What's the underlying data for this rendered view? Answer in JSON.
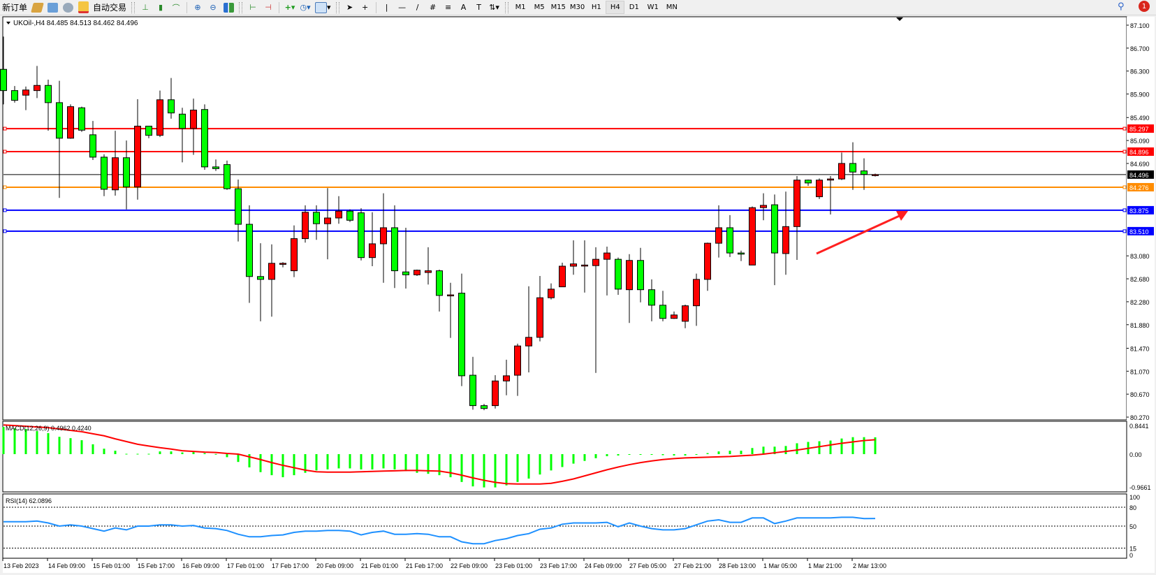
{
  "toolbar": {
    "new_order": "新订单",
    "auto_trading": "自动交易",
    "timeframes": [
      "M1",
      "M5",
      "M15",
      "M30",
      "H1",
      "H4",
      "D1",
      "W1",
      "MN"
    ],
    "active_timeframe": "H4",
    "notification_count": "1",
    "icons": [
      "metaeditor-icon",
      "market-watch-icon",
      "signals-icon",
      "auto-trading-icon",
      "bar-chart-icon",
      "candlestick-icon",
      "line-chart-icon",
      "zoom-in-icon",
      "zoom-out-icon",
      "tile-windows-icon",
      "auto-scroll-icon",
      "chart-shift-icon",
      "indicators-icon",
      "periods-icon",
      "templates-icon",
      "cursor-icon",
      "crosshair-icon",
      "vertical-line-icon",
      "horizontal-line-icon",
      "trendline-icon",
      "equidistant-channel-icon",
      "fibonacci-icon",
      "text-icon",
      "text-label-icon",
      "arrows-icon",
      "search-icon",
      "chat-icon"
    ]
  },
  "chart": {
    "title": "UKOil-,H4  84.485 84.513 84.462 84.496",
    "bull_color": "#ff0000",
    "bear_color": "#00ff00",
    "price_labels": [
      "87.100",
      "86.700",
      "86.300",
      "85.900",
      "85.490",
      "85.090",
      "84.690",
      "83.080",
      "82.680",
      "82.280",
      "81.880",
      "81.470",
      "81.070",
      "80.670",
      "80.270"
    ],
    "levels": [
      {
        "price": "85.297",
        "color": "#ff0000"
      },
      {
        "price": "84.896",
        "color": "#ff0000"
      },
      {
        "price": "84.276",
        "color": "#ff8c00"
      },
      {
        "price": "83.875",
        "color": "#0000ff"
      },
      {
        "price": "83.510",
        "color": "#0000ff"
      }
    ],
    "current_price": "84.496",
    "time_labels": [
      "13 Feb 2023",
      "14 Feb 09:00",
      "15 Feb 01:00",
      "15 Feb 17:00",
      "16 Feb 09:00",
      "17 Feb 01:00",
      "17 Feb 17:00",
      "20 Feb 09:00",
      "21 Feb 01:00",
      "21 Feb 17:00",
      "22 Feb 09:00",
      "23 Feb 01:00",
      "23 Feb 17:00",
      "24 Feb 09:00",
      "27 Feb 05:00",
      "27 Feb 21:00",
      "28 Feb 13:00",
      "1 Mar 05:00",
      "1 Mar 21:00",
      "2 Mar 13:00"
    ],
    "annotation_arrow_color": "#ff2020",
    "candles_ohlc": [
      [
        86.33,
        86.9,
        85.72,
        85.96
      ],
      [
        85.96,
        86.04,
        85.75,
        85.79
      ],
      [
        85.88,
        86.03,
        85.62,
        85.97
      ],
      [
        85.96,
        86.39,
        85.83,
        86.05
      ],
      [
        86.05,
        86.15,
        85.26,
        85.75
      ],
      [
        85.75,
        86.13,
        84.09,
        85.13
      ],
      [
        85.13,
        85.72,
        85.12,
        85.68
      ],
      [
        85.66,
        85.68,
        85.24,
        85.27
      ],
      [
        85.19,
        85.43,
        84.75,
        84.8
      ],
      [
        84.8,
        84.85,
        84.12,
        84.24
      ],
      [
        84.23,
        85.26,
        84.13,
        84.79
      ],
      [
        84.79,
        85.09,
        83.89,
        84.28
      ],
      [
        84.28,
        85.81,
        84.06,
        85.34
      ],
      [
        85.34,
        85.34,
        85.13,
        85.18
      ],
      [
        85.18,
        85.96,
        85.15,
        85.8
      ],
      [
        85.8,
        86.18,
        85.47,
        85.57
      ],
      [
        85.55,
        85.66,
        84.71,
        85.3
      ],
      [
        85.3,
        85.82,
        84.84,
        85.62
      ],
      [
        85.63,
        85.72,
        84.58,
        84.63
      ],
      [
        84.63,
        84.76,
        84.56,
        84.6
      ],
      [
        84.67,
        84.74,
        84.23,
        84.25
      ],
      [
        84.25,
        84.41,
        83.33,
        83.63
      ],
      [
        83.63,
        83.96,
        82.26,
        82.72
      ],
      [
        82.72,
        83.3,
        81.94,
        82.67
      ],
      [
        82.67,
        83.28,
        82.02,
        82.95
      ],
      [
        82.94,
        82.97,
        82.88,
        82.95
      ],
      [
        82.82,
        83.61,
        82.71,
        83.38
      ],
      [
        83.38,
        83.96,
        83.31,
        83.84
      ],
      [
        83.84,
        83.96,
        83.36,
        83.64
      ],
      [
        83.64,
        84.26,
        83.02,
        83.74
      ],
      [
        83.74,
        84.12,
        83.64,
        83.86
      ],
      [
        83.86,
        83.89,
        83.67,
        83.7
      ],
      [
        83.83,
        83.91,
        83.0,
        83.05
      ],
      [
        83.05,
        83.84,
        82.9,
        83.29
      ],
      [
        83.29,
        84.17,
        82.61,
        83.57
      ],
      [
        83.57,
        83.96,
        82.52,
        82.82
      ],
      [
        82.8,
        83.57,
        82.51,
        82.75
      ],
      [
        82.75,
        82.84,
        82.73,
        82.83
      ],
      [
        82.79,
        83.23,
        82.58,
        82.82
      ],
      [
        82.82,
        82.84,
        82.11,
        82.39
      ],
      [
        82.39,
        82.61,
        81.65,
        82.4
      ],
      [
        82.43,
        82.77,
        80.81,
        80.99
      ],
      [
        81.0,
        81.32,
        80.4,
        80.47
      ],
      [
        80.47,
        80.5,
        80.39,
        80.42
      ],
      [
        80.47,
        81.0,
        80.42,
        80.9
      ],
      [
        80.9,
        81.27,
        80.65,
        80.99
      ],
      [
        81.0,
        81.55,
        80.64,
        81.51
      ],
      [
        81.51,
        82.55,
        81.05,
        81.66
      ],
      [
        81.66,
        82.73,
        81.59,
        82.35
      ],
      [
        82.35,
        82.6,
        82.32,
        82.5
      ],
      [
        82.54,
        82.96,
        82.54,
        82.9
      ],
      [
        82.9,
        83.35,
        82.75,
        82.94
      ],
      [
        82.91,
        83.35,
        82.44,
        82.92
      ],
      [
        82.91,
        83.23,
        81.04,
        83.02
      ],
      [
        83.02,
        83.24,
        82.39,
        83.13
      ],
      [
        83.02,
        83.05,
        82.4,
        82.5
      ],
      [
        82.49,
        83.11,
        81.91,
        83.0
      ],
      [
        83.0,
        83.22,
        82.27,
        82.49
      ],
      [
        82.49,
        82.67,
        81.94,
        82.22
      ],
      [
        82.22,
        82.47,
        81.94,
        81.99
      ],
      [
        81.99,
        82.11,
        81.98,
        82.05
      ],
      [
        81.94,
        82.23,
        81.82,
        82.21
      ],
      [
        82.21,
        82.77,
        81.86,
        82.67
      ],
      [
        82.67,
        83.31,
        82.47,
        83.3
      ],
      [
        83.3,
        83.96,
        83.05,
        83.57
      ],
      [
        83.57,
        83.79,
        83.06,
        83.13
      ],
      [
        83.13,
        83.17,
        82.99,
        83.11
      ],
      [
        82.92,
        83.94,
        82.92,
        83.92
      ],
      [
        83.92,
        84.17,
        83.7,
        83.96
      ],
      [
        83.97,
        84.15,
        82.57,
        83.13
      ],
      [
        83.12,
        84.2,
        82.75,
        83.59
      ],
      [
        83.59,
        84.47,
        83.01,
        84.4
      ],
      [
        84.4,
        84.41,
        84.3,
        84.35
      ],
      [
        84.11,
        84.43,
        84.07,
        84.4
      ],
      [
        84.4,
        84.47,
        83.8,
        84.42
      ],
      [
        84.42,
        84.88,
        84.4,
        84.69
      ],
      [
        84.69,
        85.06,
        84.23,
        84.54
      ],
      [
        84.56,
        84.78,
        84.23,
        84.5
      ],
      [
        84.485,
        84.513,
        84.462,
        84.496
      ]
    ]
  },
  "macd": {
    "label": "MACD(12,26,9) 0.4962 0.4240",
    "axis_labels": [
      "0.8441",
      "0.00",
      "-0.9661"
    ],
    "histogram_color": "#00ff00",
    "signal_color": "#ff0000",
    "histogram": [
      0.8,
      0.76,
      0.74,
      0.68,
      0.62,
      0.51,
      0.47,
      0.41,
      0.29,
      0.16,
      0.1,
      0.01,
      0.01,
      0.01,
      0.08,
      0.08,
      0.05,
      0.06,
      0.03,
      0.005,
      -0.09,
      -0.23,
      -0.39,
      -0.53,
      -0.62,
      -0.68,
      -0.62,
      -0.55,
      -0.48,
      -0.45,
      -0.42,
      -0.42,
      -0.45,
      -0.45,
      -0.42,
      -0.45,
      -0.5,
      -0.55,
      -0.58,
      -0.62,
      -0.68,
      -0.82,
      -0.95,
      -0.98,
      -0.98,
      -0.92,
      -0.82,
      -0.72,
      -0.6,
      -0.48,
      -0.38,
      -0.28,
      -0.2,
      -0.12,
      -0.06,
      -0.04,
      -0.02,
      -0.01,
      -0.02,
      -0.03,
      -0.04,
      -0.04,
      -0.02,
      0.03,
      0.08,
      0.1,
      0.1,
      0.18,
      0.22,
      0.22,
      0.24,
      0.32,
      0.36,
      0.38,
      0.4,
      0.46,
      0.5,
      0.5,
      0.4962
    ],
    "signal": [
      0.86,
      0.84,
      0.82,
      0.8,
      0.78,
      0.74,
      0.7,
      0.66,
      0.6,
      0.54,
      0.45,
      0.37,
      0.29,
      0.24,
      0.19,
      0.15,
      0.1,
      0.08,
      0.06,
      0.05,
      0.02,
      0.0,
      -0.08,
      -0.16,
      -0.25,
      -0.33,
      -0.4,
      -0.47,
      -0.52,
      -0.53,
      -0.53,
      -0.53,
      -0.52,
      -0.51,
      -0.5,
      -0.49,
      -0.48,
      -0.48,
      -0.49,
      -0.5,
      -0.55,
      -0.62,
      -0.7,
      -0.77,
      -0.83,
      -0.87,
      -0.88,
      -0.88,
      -0.88,
      -0.86,
      -0.8,
      -0.73,
      -0.64,
      -0.55,
      -0.46,
      -0.38,
      -0.31,
      -0.25,
      -0.2,
      -0.16,
      -0.13,
      -0.11,
      -0.1,
      -0.09,
      -0.08,
      -0.07,
      -0.05,
      -0.03,
      0.0,
      0.04,
      0.08,
      0.12,
      0.17,
      0.22,
      0.27,
      0.32,
      0.36,
      0.4,
      0.424
    ]
  },
  "rsi": {
    "label": "RSI(14) 62.0896",
    "axis_labels": [
      "100",
      "80",
      "50",
      "15",
      "0"
    ],
    "line_color": "#1e90ff",
    "values": [
      57,
      57,
      57,
      58,
      55,
      50,
      52,
      50,
      46,
      42,
      47,
      44,
      50,
      50,
      52,
      52,
      50,
      51,
      47,
      46,
      43,
      37,
      33,
      33,
      35,
      36,
      40,
      42,
      42,
      43,
      43,
      42,
      36,
      40,
      42,
      37,
      37,
      38,
      37,
      33,
      33,
      25,
      22,
      22,
      27,
      30,
      35,
      38,
      45,
      47,
      53,
      55,
      55,
      55,
      56,
      49,
      55,
      50,
      46,
      44,
      44,
      46,
      52,
      58,
      60,
      56,
      56,
      63,
      63,
      54,
      58,
      63,
      63,
      63,
      63,
      64,
      64,
      62,
      62.09
    ]
  }
}
